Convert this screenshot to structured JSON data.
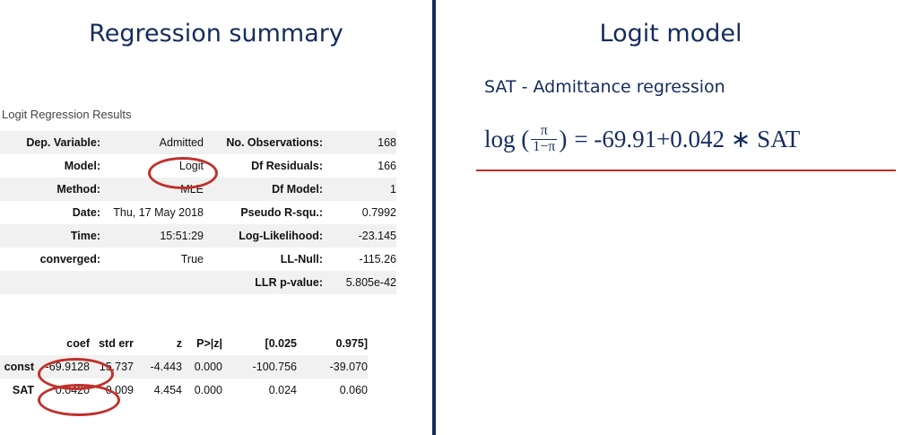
{
  "left_heading": "Regression summary",
  "right_heading": "Logit model",
  "results_title": "Logit Regression Results",
  "summary": [
    [
      "Dep. Variable:",
      "Admitted",
      "No. Observations:",
      "168"
    ],
    [
      "Model:",
      "Logit",
      "Df Residuals:",
      "166"
    ],
    [
      "Method:",
      "MLE",
      "Df Model:",
      "1"
    ],
    [
      "Date:",
      "Thu, 17 May 2018",
      "Pseudo R-squ.:",
      "0.7992"
    ],
    [
      "Time:",
      "15:51:29",
      "Log-Likelihood:",
      "-23.145"
    ],
    [
      "converged:",
      "True",
      "LL-Null:",
      "-115.26"
    ],
    [
      "",
      "",
      "LLR p-value:",
      "5.805e-42"
    ]
  ],
  "coef_header": [
    "",
    "coef",
    "std err",
    "z",
    "P>|z|",
    "[0.025",
    "0.975]"
  ],
  "coef_rows": [
    [
      "const",
      "-69.9128",
      "15.737",
      "-4.443",
      "0.000",
      "-100.756",
      "-39.070"
    ],
    [
      "SAT",
      "0.0420",
      "0.009",
      "4.454",
      "0.000",
      "0.024",
      "0.060"
    ]
  ],
  "subtitle": "SAT - Admittance regression",
  "equation": {
    "func": "log (",
    "numerator": "π",
    "denominator": "1−π",
    "close": ")",
    "rhs": "= -69.91+0.042 ∗ SAT"
  },
  "colors": {
    "navy": "#152c5e",
    "highlight_red": "#c0302b"
  }
}
